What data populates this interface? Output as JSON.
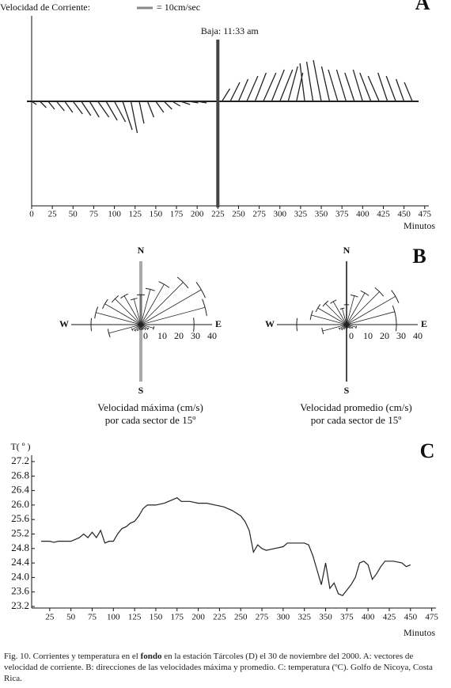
{
  "panel_a": {
    "type": "vector",
    "label": "A",
    "legend_label": "Velocidad de Corriente:",
    "legend_scale": "= 10cm/sec",
    "annotation": "Baja: 11:33 am",
    "annotation_x": 225,
    "xlabel": "Minutos",
    "color": "#222",
    "xlim": [
      0,
      480
    ],
    "xticks": [
      0,
      25,
      50,
      75,
      100,
      125,
      150,
      175,
      200,
      225,
      250,
      275,
      300,
      325,
      350,
      375,
      400,
      425,
      450,
      475
    ],
    "x": [
      0,
      10,
      20,
      30,
      40,
      50,
      60,
      70,
      80,
      90,
      100,
      110,
      120,
      130,
      140,
      150,
      160,
      170,
      180,
      190,
      200,
      210,
      220,
      230,
      240,
      250,
      260,
      270,
      280,
      290,
      300,
      310,
      320,
      330,
      340,
      350,
      360,
      370,
      380,
      390,
      400,
      410,
      420,
      430,
      440,
      450,
      460
    ],
    "u": [
      3,
      4,
      4,
      5,
      5,
      6,
      6,
      6,
      7,
      7,
      7,
      6,
      4,
      3,
      4,
      5,
      5,
      5,
      6,
      6,
      6,
      6,
      6,
      5,
      6,
      6,
      7,
      7,
      8,
      8,
      8,
      6,
      4,
      -3,
      -4,
      -5,
      -5,
      -6,
      -6,
      -6,
      -6,
      -7,
      -7,
      -6,
      -6,
      -5,
      -5
    ],
    "v": [
      -2,
      -4,
      -5,
      -6,
      -7,
      -8,
      -9,
      -10,
      -10,
      -12,
      -13,
      -18,
      -20,
      -14,
      -10,
      -7,
      -5,
      -3,
      -2,
      -1,
      -1,
      0,
      0,
      8,
      12,
      14,
      16,
      18,
      18,
      20,
      20,
      22,
      18,
      24,
      25,
      26,
      22,
      20,
      20,
      18,
      20,
      18,
      16,
      18,
      16,
      14,
      12
    ]
  },
  "panel_b": {
    "type": "rose",
    "label": "B",
    "north": "N",
    "south": "S",
    "east": "E",
    "west": "W",
    "rlim": [
      0,
      40
    ],
    "rticks": [
      0,
      10,
      20,
      30,
      40
    ],
    "directions": [
      0,
      15,
      30,
      45,
      60,
      75,
      90,
      105,
      120,
      135,
      150,
      165,
      180,
      195,
      210,
      225,
      240,
      255,
      270,
      285,
      300,
      315,
      330,
      345
    ],
    "roses": [
      {
        "caption": [
          "Velocidad máxima (cm/s)",
          "por cada sector de 15º"
        ],
        "axis_color": "#aaaaaa",
        "values": [
          18,
          22,
          28,
          36,
          42,
          40,
          32,
          8,
          5,
          4,
          3,
          3,
          3,
          3,
          4,
          5,
          6,
          20,
          30,
          28,
          25,
          22,
          20,
          16
        ]
      },
      {
        "caption": [
          "Velocidad promedio (cm/s)",
          "por cada sector de 15º"
        ],
        "axis_color": "#111111",
        "values": [
          12,
          18,
          22,
          28,
          34,
          30,
          30,
          6,
          4,
          3,
          2,
          2,
          2,
          2,
          3,
          4,
          5,
          15,
          30,
          22,
          20,
          18,
          16,
          10
        ]
      }
    ]
  },
  "panel_c": {
    "type": "line",
    "label": "C",
    "ylabel": "T( º )",
    "xlabel": "Minutos",
    "color": "#222",
    "xlim": [
      0,
      480
    ],
    "xticks": [
      25,
      50,
      75,
      100,
      125,
      150,
      175,
      200,
      225,
      250,
      275,
      300,
      325,
      350,
      375,
      400,
      425,
      450,
      475
    ],
    "ylim": [
      23.2,
      27.2
    ],
    "yticks": [
      23.2,
      {
        "value": 23.6,
        "label": "23.6"
      },
      {
        "value": 24,
        "label": "24.0"
      },
      24.4,
      24.8,
      25.2,
      25.6,
      {
        "value": 26,
        "label": "26.0"
      },
      26.4,
      26.8,
      27.2
    ],
    "x": [
      15,
      20,
      25,
      30,
      35,
      40,
      45,
      50,
      60,
      65,
      70,
      75,
      80,
      85,
      90,
      95,
      100,
      105,
      110,
      115,
      120,
      125,
      130,
      135,
      140,
      150,
      160,
      170,
      175,
      180,
      190,
      200,
      210,
      220,
      230,
      240,
      250,
      255,
      260,
      265,
      270,
      275,
      280,
      290,
      300,
      305,
      315,
      325,
      330,
      335,
      340,
      345,
      350,
      355,
      360,
      365,
      370,
      380,
      385,
      390,
      395,
      400,
      405,
      410,
      415,
      420,
      425,
      430,
      440,
      445,
      450
    ],
    "values": [
      25.0,
      25.0,
      25.0,
      24.97,
      25.0,
      25.0,
      25.0,
      25.0,
      25.1,
      25.2,
      25.1,
      25.25,
      25.1,
      25.3,
      24.95,
      25.0,
      25.0,
      25.2,
      25.35,
      25.4,
      25.5,
      25.55,
      25.7,
      25.9,
      26.0,
      26.0,
      26.05,
      26.15,
      26.2,
      26.1,
      26.1,
      26.05,
      26.05,
      26.0,
      25.95,
      25.85,
      25.7,
      25.55,
      25.3,
      24.7,
      24.9,
      24.8,
      24.75,
      24.8,
      24.85,
      24.95,
      24.95,
      24.95,
      24.9,
      24.6,
      24.2,
      23.8,
      24.4,
      23.7,
      23.85,
      23.55,
      23.5,
      23.8,
      24.0,
      24.4,
      24.45,
      24.35,
      23.95,
      24.1,
      24.3,
      24.45,
      24.45,
      24.45,
      24.4,
      24.3,
      24.35
    ]
  },
  "caption": [
    "Fig. 10. Corrientes y temperatura en el ",
    "fondo",
    " en la estación Tárcoles (D) el 30 de noviembre del 2000. A: vectores de velocidad de corriente. B: direcciones de las velocidades máxima y promedio. C: temperatura (ºC). Golfo de Nicoya, Costa Rica."
  ]
}
